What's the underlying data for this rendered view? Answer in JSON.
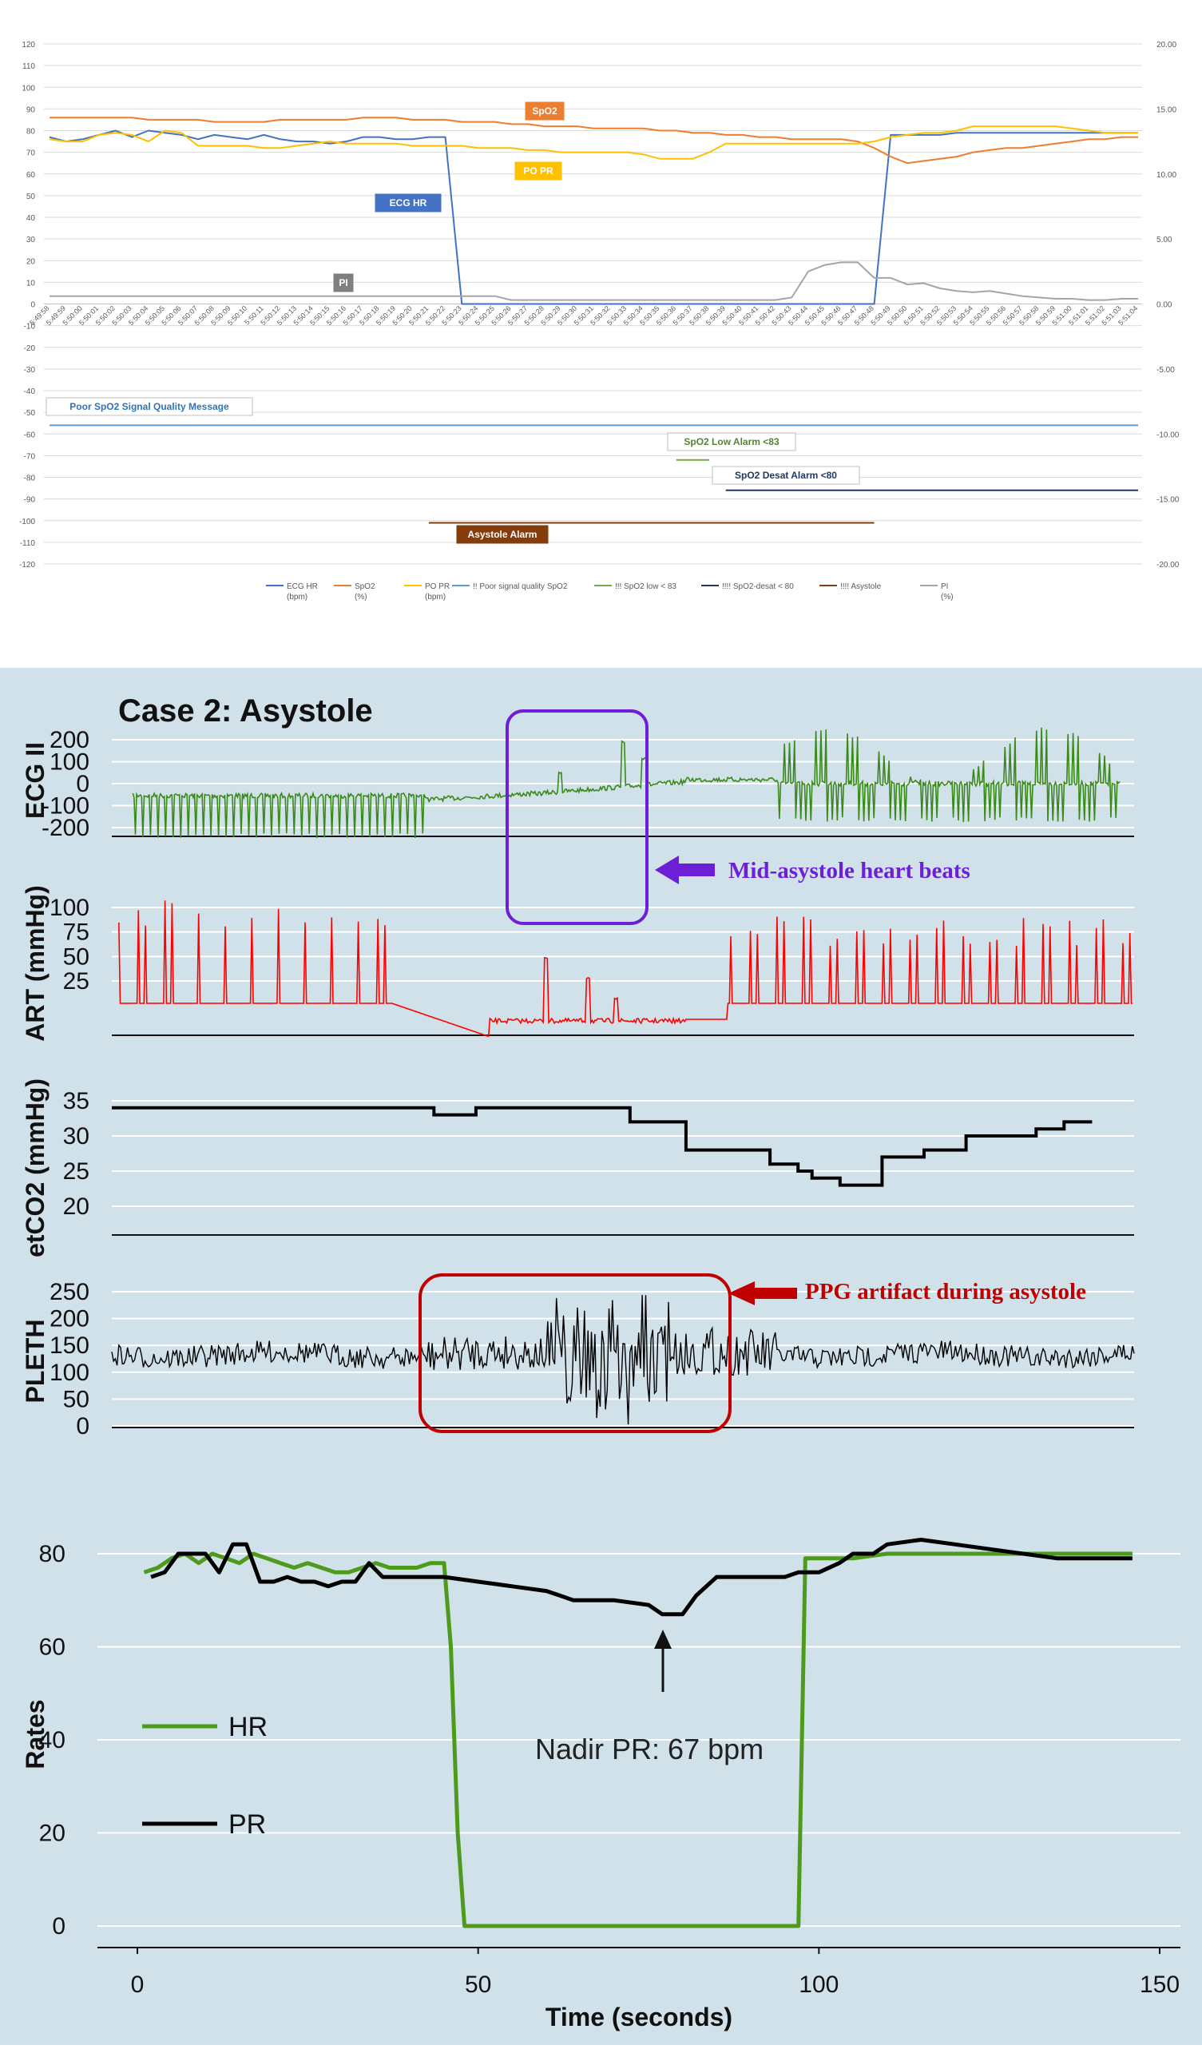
{
  "chart_data": [
    {
      "type": "line",
      "title": "",
      "x": [
        "5:49:58",
        "5:49:59",
        "5:50:00",
        "5:50:01",
        "5:50:02",
        "5:50:03",
        "5:50:04",
        "5:50:05",
        "5:50:06",
        "5:50:07",
        "5:50:08",
        "5:50:09",
        "5:50:10",
        "5:50:11",
        "5:50:12",
        "5:50:13",
        "5:50:14",
        "5:50:15",
        "5:50:16",
        "5:50:17",
        "5:50:18",
        "5:50:19",
        "5:50:20",
        "5:50:21",
        "5:50:22",
        "5:50:23",
        "5:50:24",
        "5:50:25",
        "5:50:26",
        "5:50:27",
        "5:50:28",
        "5:50:29",
        "5:50:30",
        "5:50:31",
        "5:50:32",
        "5:50:33",
        "5:50:34",
        "5:50:35",
        "5:50:36",
        "5:50:37",
        "5:50:38",
        "5:50:39",
        "5:50:40",
        "5:50:41",
        "5:50:42",
        "5:50:43",
        "5:50:44",
        "5:50:45",
        "5:50:46",
        "5:50:47",
        "5:50:48",
        "5:50:49",
        "5:50:50",
        "5:50:51",
        "5:50:52",
        "5:50:53",
        "5:50:54",
        "5:50:55",
        "5:50:56",
        "5:50:57",
        "5:50:58",
        "5:50:59",
        "5:51:00",
        "5:51:01",
        "5:51:02",
        "5:51:03",
        "5:51:04"
      ],
      "y_left": {
        "min": -120,
        "max": 120,
        "ticks": [
          -120,
          -110,
          -100,
          -90,
          -80,
          -70,
          -60,
          -50,
          -40,
          -30,
          -20,
          -10,
          0,
          10,
          20,
          30,
          40,
          50,
          60,
          70,
          80,
          90,
          100,
          110,
          120
        ]
      },
      "y_right": {
        "ticks": [
          "-20.00",
          "-15.00",
          "-10.00",
          "-5.00",
          "0.00",
          "5.00",
          "10.00",
          "15.00",
          "20.00"
        ],
        "min": -20,
        "max": 20
      },
      "grid": true,
      "series": [
        {
          "name": "ECG HR\n(bpm)",
          "color": "#4472c4",
          "values": [
            77,
            75,
            76,
            78,
            80,
            77,
            80,
            79,
            78,
            76,
            78,
            77,
            76,
            78,
            76,
            75,
            75,
            74,
            75,
            77,
            77,
            76,
            76,
            77,
            77,
            0,
            0,
            0,
            0,
            0,
            0,
            0,
            0,
            0,
            0,
            0,
            0,
            0,
            0,
            0,
            0,
            0,
            0,
            0,
            0,
            0,
            0,
            0,
            0,
            0,
            0,
            78,
            78,
            78,
            78,
            79,
            79,
            79,
            79,
            79,
            79,
            79,
            79,
            79,
            79,
            79,
            79
          ]
        },
        {
          "name": "SpO2\n(%)",
          "color": "#ed7d31",
          "values": [
            86,
            86,
            86,
            86,
            86,
            86,
            85,
            85,
            85,
            85,
            84,
            84,
            84,
            84,
            85,
            85,
            85,
            85,
            85,
            86,
            86,
            86,
            85,
            85,
            85,
            84,
            84,
            84,
            83,
            83,
            82,
            82,
            82,
            81,
            81,
            81,
            81,
            80,
            80,
            79,
            79,
            78,
            78,
            77,
            77,
            76,
            76,
            76,
            76,
            75,
            72,
            68,
            65,
            66,
            67,
            68,
            70,
            71,
            72,
            72,
            73,
            74,
            75,
            76,
            76,
            77,
            77
          ]
        },
        {
          "name": "PO PR\n(bpm)",
          "color": "#ffc000",
          "values": [
            76,
            75,
            75,
            78,
            79,
            78,
            75,
            80,
            79,
            73,
            73,
            73,
            73,
            72,
            72,
            73,
            74,
            75,
            74,
            74,
            74,
            74,
            73,
            73,
            73,
            73,
            72,
            72,
            72,
            71,
            71,
            70,
            70,
            70,
            70,
            70,
            69,
            67,
            67,
            67,
            70,
            74,
            74,
            74,
            74,
            74,
            74,
            74,
            74,
            74,
            75,
            77,
            78,
            79,
            79,
            80,
            82,
            82,
            82,
            82,
            82,
            82,
            81,
            80,
            79,
            79,
            79
          ]
        },
        {
          "name": "Poor SpO2 Signal Quality Message",
          "color": "#5b9bd5",
          "level": -56,
          "x_start": "5:49:58",
          "x_end": "5:51:04"
        },
        {
          "name": "SpO2 Low Alarm <83",
          "color": "#70ad47",
          "level": -72,
          "x_start": "5:50:36",
          "x_end": "5:50:38"
        },
        {
          "name": "SpO2 Desat Alarm <80",
          "color": "#203864",
          "level": -86,
          "x_start": "5:50:39",
          "x_end": "5:51:04"
        },
        {
          "name": "Asystole Alarm",
          "color": "#843c0c",
          "level": -101,
          "x_start": "5:50:21",
          "x_end": "5:50:48"
        },
        {
          "name": "PI\n(%)",
          "color": "#a5a5a5",
          "axis": "right",
          "values": [
            0.6,
            0.6,
            0.6,
            0.6,
            0.6,
            0.6,
            0.6,
            0.6,
            0.6,
            0.6,
            0.6,
            0.6,
            0.6,
            0.6,
            0.6,
            0.6,
            0.6,
            0.6,
            0.6,
            0.6,
            0.6,
            0.6,
            0.6,
            0.6,
            0.6,
            0.6,
            0.6,
            0.6,
            0.3,
            0.3,
            0.3,
            0.3,
            0.3,
            0.3,
            0.3,
            0.3,
            0.3,
            0.3,
            0.3,
            0.3,
            0.3,
            0.3,
            0.3,
            0.3,
            0.3,
            0.5,
            2.5,
            3.0,
            3.2,
            3.2,
            2.0,
            2.0,
            1.5,
            1.6,
            1.2,
            1.0,
            0.9,
            1.0,
            0.8,
            0.6,
            0.5,
            0.4,
            0.4,
            0.3,
            0.3,
            0.4,
            0.4
          ]
        }
      ],
      "legend": {
        "position": "bottom",
        "entries": [
          {
            "color": "#4472c4",
            "text": "ECG HR\n(bpm)"
          },
          {
            "color": "#ed7d31",
            "text": "SpO2\n(%)"
          },
          {
            "color": "#ffc000",
            "text": "PO PR\n(bpm)"
          },
          {
            "color": "#5b9bd5",
            "text": "!! Poor signal quality SpO2"
          },
          {
            "color": "#70ad47",
            "text": "!!! SpO2 low < 83"
          },
          {
            "color": "#203864",
            "text": "!!!! SpO2-desat < 80"
          },
          {
            "color": "#843c0c",
            "text": "!!!! Asystole"
          },
          {
            "color": "#a5a5a5",
            "text": "PI\n(%)"
          }
        ]
      },
      "annotations": [
        {
          "text": "SpO2",
          "bg": "#ed7d31",
          "color": "#ffffff"
        },
        {
          "text": "PO PR",
          "bg": "#ffc000",
          "color": "#ffffff"
        },
        {
          "text": "ECG HR",
          "bg": "#4472c4",
          "color": "#ffffff"
        },
        {
          "text": "PI",
          "bg": "#7f7f7f",
          "color": "#ffffff"
        },
        {
          "text": "Poor SpO2 Signal Quality Message",
          "bg": "#ffffff",
          "color": "#2e75b6"
        },
        {
          "text": "SpO2 Low Alarm <83",
          "bg": "#ffffff",
          "color": "#548235"
        },
        {
          "text": "SpO2 Desat Alarm <80",
          "bg": "#ffffff",
          "color": "#203864"
        },
        {
          "text": "Asystole Alarm",
          "bg": "#843c0c",
          "color": "#ffffff"
        }
      ]
    },
    {
      "type": "line",
      "title": "Case 2: Asystole",
      "panels": [
        {
          "ylabel": "ECG II",
          "ticks": [
            200,
            100,
            0,
            -100,
            -200
          ],
          "color": "#3a8a1a"
        },
        {
          "ylabel": "ART (mmHg)",
          "ticks": [
            100,
            75,
            50,
            25
          ],
          "color": "#ff0000"
        },
        {
          "ylabel": "etCO2 (mmHg)",
          "ticks": [
            35,
            30,
            25,
            20
          ],
          "color": "#000000",
          "x": [
            0,
            45,
            46,
            51,
            52,
            58,
            70,
            74,
            78,
            82,
            86,
            88,
            90,
            94,
            96,
            98,
            100,
            102,
            104,
            106,
            110,
            112,
            116,
            118,
            120,
            122,
            124,
            126,
            132,
            134,
            136,
            138,
            140
          ],
          "values": [
            34,
            34,
            33,
            33,
            34,
            34,
            34,
            32,
            32,
            28,
            28,
            28,
            28,
            26,
            26,
            25,
            24,
            24,
            23,
            23,
            27,
            27,
            28,
            28,
            28,
            30,
            30,
            30,
            31,
            31,
            32,
            32,
            32
          ]
        },
        {
          "ylabel": "PLETH",
          "ticks": [
            250,
            200,
            150,
            100,
            50,
            0
          ],
          "color": "#000000"
        }
      ],
      "annotations": [
        {
          "text": "Mid-asystole heart beats",
          "color": "#6b1fd6"
        },
        {
          "text": "PPG artifact during asystole",
          "color": "#c00000"
        },
        {
          "text": "Nadir PR: 67 bpm",
          "color": "#222222"
        }
      ],
      "rates": {
        "ylabel": "Rates",
        "xlabel": "Time (seconds)",
        "xticks": [
          0,
          50,
          100,
          150
        ],
        "yticks": [
          0,
          20,
          40,
          60,
          80
        ],
        "xlim": [
          -5,
          152
        ],
        "ylim": [
          -4,
          92
        ],
        "series": [
          {
            "name": "HR",
            "color": "#4e9a1c",
            "x": [
              1,
              3,
              5,
              7,
              9,
              11,
              13,
              15,
              17,
              19,
              21,
              23,
              25,
              27,
              29,
              31,
              33,
              35,
              37,
              39,
              41,
              43,
              45,
              46,
              47,
              48,
              50,
              60,
              70,
              80,
              90,
              95,
              97,
              98,
              100,
              105,
              110,
              120,
              130,
              140,
              146
            ],
            "values": [
              76,
              77,
              79,
              80,
              78,
              80,
              79,
              78,
              80,
              79,
              78,
              77,
              78,
              77,
              76,
              76,
              77,
              78,
              77,
              77,
              77,
              78,
              78,
              60,
              20,
              0,
              0,
              0,
              0,
              0,
              0,
              0,
              0,
              79,
              79,
              79,
              80,
              80,
              80,
              80,
              80
            ]
          },
          {
            "name": "PR",
            "color": "#000000",
            "x": [
              2,
              4,
              6,
              8,
              10,
              12,
              14,
              16,
              18,
              20,
              22,
              24,
              26,
              28,
              30,
              32,
              34,
              36,
              38,
              40,
              45,
              50,
              55,
              60,
              62,
              64,
              70,
              75,
              77,
              78,
              79,
              80,
              82,
              85,
              90,
              95,
              97,
              100,
              103,
              105,
              108,
              110,
              115,
              120,
              125,
              130,
              135,
              140,
              146
            ],
            "values": [
              75,
              76,
              80,
              80,
              80,
              76,
              82,
              82,
              74,
              74,
              75,
              74,
              74,
              73,
              74,
              74,
              78,
              75,
              75,
              75,
              75,
              74,
              73,
              72,
              71,
              70,
              70,
              69,
              67,
              67,
              67,
              67,
              71,
              75,
              75,
              75,
              76,
              76,
              78,
              80,
              80,
              82,
              83,
              82,
              81,
              80,
              79,
              79,
              79
            ]
          }
        ]
      }
    }
  ]
}
